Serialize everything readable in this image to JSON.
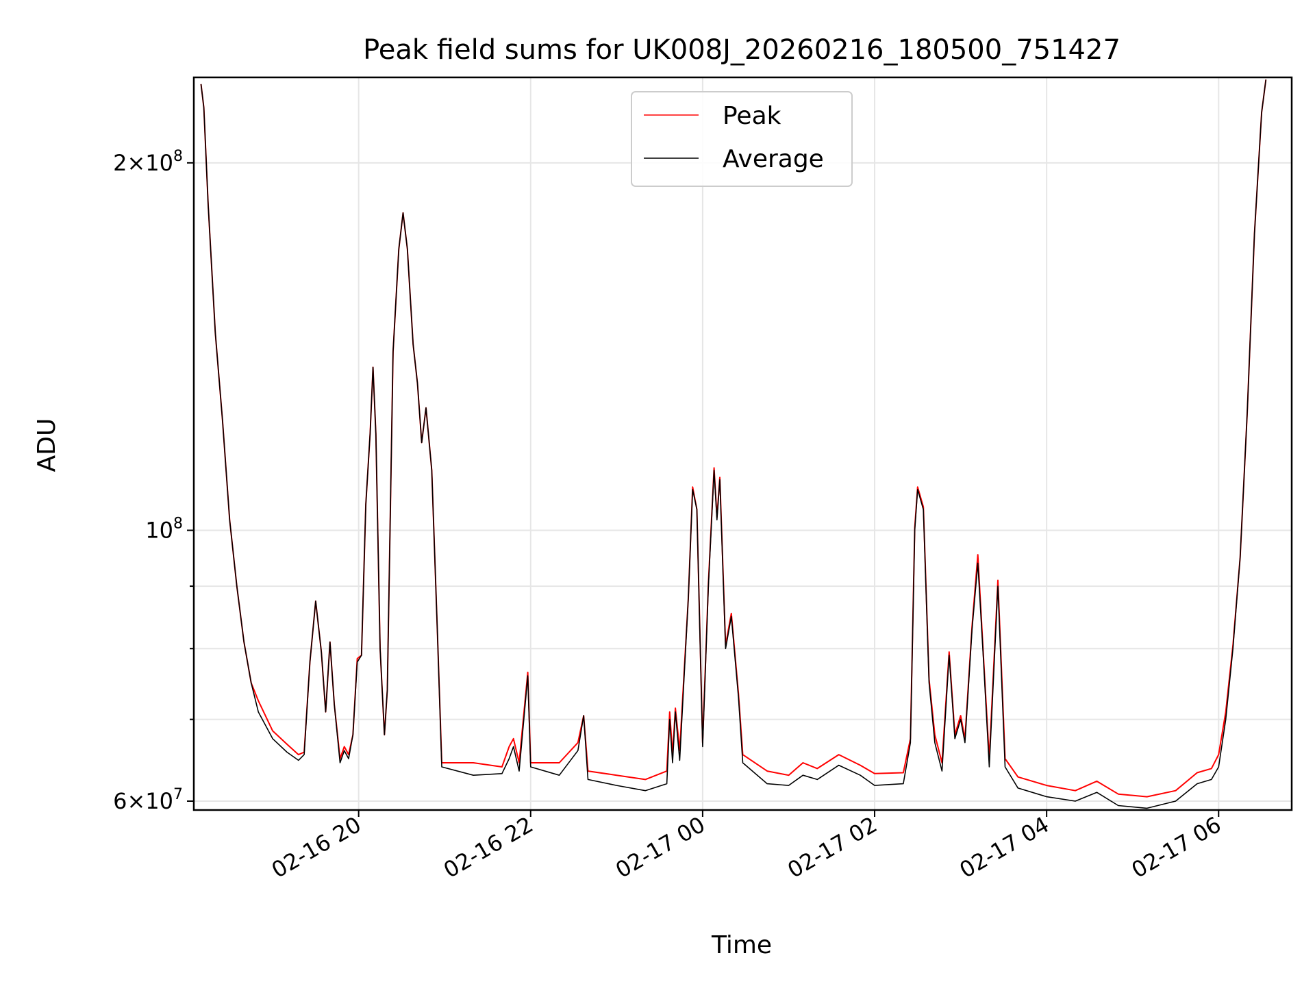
{
  "chart_data": {
    "type": "line",
    "title": "Peak field sums for UK008J_20260216_180500_751427",
    "xlabel": "Time",
    "ylabel": "ADU",
    "y_scale": "log",
    "ylim": [
      59000000,
      235000000
    ],
    "xlim": [
      "2026-02-16 18:05",
      "2026-02-17 06:51"
    ],
    "grid": true,
    "legend": {
      "position": "top-center",
      "entries": [
        "Peak",
        "Average"
      ]
    },
    "x_ticks": [
      {
        "value": "2026-02-16 20:00",
        "label": "02-16 20"
      },
      {
        "value": "2026-02-16 22:00",
        "label": "02-16 22"
      },
      {
        "value": "2026-02-17 00:00",
        "label": "02-17 00"
      },
      {
        "value": "2026-02-17 02:00",
        "label": "02-17 02"
      },
      {
        "value": "2026-02-17 04:00",
        "label": "02-17 04"
      },
      {
        "value": "2026-02-17 06:00",
        "label": "02-17 06"
      }
    ],
    "y_ticks": [
      {
        "value": 60000000,
        "mantissa": "6",
        "exponent": "7"
      },
      {
        "value": 100000000,
        "mantissa": "",
        "exponent": "8"
      },
      {
        "value": 200000000,
        "mantissa": "2",
        "exponent": "8"
      }
    ],
    "y_minor_ticks": [
      70000000,
      80000000,
      90000000
    ],
    "colors": {
      "Peak": "#ff0000",
      "Average": "#000000"
    },
    "series": [
      {
        "name": "Average",
        "points": [
          [
            "2026-02-16 18:10",
            232000000
          ],
          [
            "2026-02-16 18:12",
            222000000
          ],
          [
            "2026-02-16 18:15",
            185000000
          ],
          [
            "2026-02-16 18:20",
            145000000
          ],
          [
            "2026-02-16 18:25",
            123000000
          ],
          [
            "2026-02-16 18:30",
            102000000
          ],
          [
            "2026-02-16 18:35",
            90000000
          ],
          [
            "2026-02-16 18:40",
            81000000
          ],
          [
            "2026-02-16 18:45",
            75000000
          ],
          [
            "2026-02-16 18:50",
            71000000
          ],
          [
            "2026-02-16 19:00",
            67500000
          ],
          [
            "2026-02-16 19:10",
            65800000
          ],
          [
            "2026-02-16 19:18",
            64800000
          ],
          [
            "2026-02-16 19:22",
            65500000
          ],
          [
            "2026-02-16 19:26",
            78000000
          ],
          [
            "2026-02-16 19:30",
            87500000
          ],
          [
            "2026-02-16 19:34",
            79500000
          ],
          [
            "2026-02-16 19:37",
            71000000
          ],
          [
            "2026-02-16 19:40",
            81000000
          ],
          [
            "2026-02-16 19:43",
            72000000
          ],
          [
            "2026-02-16 19:47",
            64500000
          ],
          [
            "2026-02-16 19:50",
            66000000
          ],
          [
            "2026-02-16 19:53",
            65000000
          ],
          [
            "2026-02-16 19:56",
            68000000
          ],
          [
            "2026-02-16 19:59",
            78000000
          ],
          [
            "2026-02-16 20:02",
            79000000
          ],
          [
            "2026-02-16 20:05",
            105000000
          ],
          [
            "2026-02-16 20:08",
            120000000
          ],
          [
            "2026-02-16 20:10",
            136000000
          ],
          [
            "2026-02-16 20:12",
            120000000
          ],
          [
            "2026-02-16 20:15",
            80000000
          ],
          [
            "2026-02-16 20:18",
            68000000
          ],
          [
            "2026-02-16 20:20",
            74000000
          ],
          [
            "2026-02-16 20:24",
            140000000
          ],
          [
            "2026-02-16 20:28",
            170000000
          ],
          [
            "2026-02-16 20:31",
            182000000
          ],
          [
            "2026-02-16 20:34",
            170000000
          ],
          [
            "2026-02-16 20:38",
            142000000
          ],
          [
            "2026-02-16 20:41",
            132000000
          ],
          [
            "2026-02-16 20:44",
            118000000
          ],
          [
            "2026-02-16 20:47",
            126000000
          ],
          [
            "2026-02-16 20:51",
            112000000
          ],
          [
            "2026-02-16 20:55",
            82000000
          ],
          [
            "2026-02-16 20:58",
            64000000
          ],
          [
            "2026-02-16 21:20",
            63000000
          ],
          [
            "2026-02-16 21:40",
            63200000
          ],
          [
            "2026-02-16 21:45",
            65000000
          ],
          [
            "2026-02-16 21:48",
            66500000
          ],
          [
            "2026-02-16 21:52",
            63500000
          ],
          [
            "2026-02-16 21:58",
            76000000
          ],
          [
            "2026-02-16 22:00",
            64000000
          ],
          [
            "2026-02-16 22:20",
            63000000
          ],
          [
            "2026-02-16 22:33",
            66000000
          ],
          [
            "2026-02-16 22:37",
            70500000
          ],
          [
            "2026-02-16 22:40",
            62500000
          ],
          [
            "2026-02-16 23:00",
            61800000
          ],
          [
            "2026-02-16 23:20",
            61200000
          ],
          [
            "2026-02-16 23:35",
            62000000
          ],
          [
            "2026-02-16 23:37",
            70000000
          ],
          [
            "2026-02-16 23:39",
            64500000
          ],
          [
            "2026-02-16 23:41",
            71000000
          ],
          [
            "2026-02-16 23:44",
            64800000
          ],
          [
            "2026-02-16 23:50",
            88000000
          ],
          [
            "2026-02-16 23:53",
            108000000
          ],
          [
            "2026-02-16 23:56",
            104000000
          ],
          [
            "2026-02-17 00:00",
            66500000
          ],
          [
            "2026-02-17 00:04",
            90000000
          ],
          [
            "2026-02-17 00:08",
            112000000
          ],
          [
            "2026-02-17 00:10",
            102000000
          ],
          [
            "2026-02-17 00:12",
            110000000
          ],
          [
            "2026-02-17 00:16",
            80000000
          ],
          [
            "2026-02-17 00:20",
            85000000
          ],
          [
            "2026-02-17 00:25",
            73000000
          ],
          [
            "2026-02-17 00:28",
            64500000
          ],
          [
            "2026-02-17 00:45",
            62000000
          ],
          [
            "2026-02-17 01:00",
            61800000
          ],
          [
            "2026-02-17 01:10",
            63000000
          ],
          [
            "2026-02-17 01:20",
            62500000
          ],
          [
            "2026-02-17 01:35",
            64200000
          ],
          [
            "2026-02-17 01:50",
            63000000
          ],
          [
            "2026-02-17 02:00",
            61800000
          ],
          [
            "2026-02-17 02:20",
            62000000
          ],
          [
            "2026-02-17 02:25",
            67000000
          ],
          [
            "2026-02-17 02:28",
            100000000
          ],
          [
            "2026-02-17 02:30",
            108000000
          ],
          [
            "2026-02-17 02:34",
            104000000
          ],
          [
            "2026-02-17 02:38",
            75000000
          ],
          [
            "2026-02-17 02:42",
            67000000
          ],
          [
            "2026-02-17 02:47",
            63500000
          ],
          [
            "2026-02-17 02:52",
            79000000
          ],
          [
            "2026-02-17 02:56",
            67500000
          ],
          [
            "2026-02-17 03:00",
            70000000
          ],
          [
            "2026-02-17 03:03",
            67000000
          ],
          [
            "2026-02-17 03:08",
            83000000
          ],
          [
            "2026-02-17 03:12",
            94000000
          ],
          [
            "2026-02-17 03:16",
            78000000
          ],
          [
            "2026-02-17 03:20",
            64000000
          ],
          [
            "2026-02-17 03:26",
            90000000
          ],
          [
            "2026-02-17 03:31",
            64000000
          ],
          [
            "2026-02-17 03:40",
            61500000
          ],
          [
            "2026-02-17 04:00",
            60500000
          ],
          [
            "2026-02-17 04:20",
            60000000
          ],
          [
            "2026-02-17 04:35",
            61000000
          ],
          [
            "2026-02-17 04:50",
            59500000
          ],
          [
            "2026-02-17 05:10",
            59200000
          ],
          [
            "2026-02-17 05:30",
            60000000
          ],
          [
            "2026-02-17 05:45",
            62000000
          ],
          [
            "2026-02-17 05:55",
            62500000
          ],
          [
            "2026-02-17 06:00",
            64000000
          ],
          [
            "2026-02-17 06:05",
            70000000
          ],
          [
            "2026-02-17 06:10",
            80000000
          ],
          [
            "2026-02-17 06:15",
            95000000
          ],
          [
            "2026-02-17 06:20",
            125000000
          ],
          [
            "2026-02-17 06:25",
            175000000
          ],
          [
            "2026-02-17 06:30",
            220000000
          ],
          [
            "2026-02-17 06:33",
            234000000
          ]
        ]
      },
      {
        "name": "Peak",
        "points": [
          [
            "2026-02-16 18:10",
            232000000
          ],
          [
            "2026-02-16 18:12",
            222000000
          ],
          [
            "2026-02-16 18:15",
            185000000
          ],
          [
            "2026-02-16 18:20",
            145000000
          ],
          [
            "2026-02-16 18:25",
            123000000
          ],
          [
            "2026-02-16 18:30",
            102000000
          ],
          [
            "2026-02-16 18:35",
            90000000
          ],
          [
            "2026-02-16 18:40",
            81000000
          ],
          [
            "2026-02-16 18:45",
            75000000
          ],
          [
            "2026-02-16 18:50",
            72500000
          ],
          [
            "2026-02-16 19:00",
            68500000
          ],
          [
            "2026-02-16 19:10",
            66800000
          ],
          [
            "2026-02-16 19:18",
            65500000
          ],
          [
            "2026-02-16 19:22",
            65800000
          ],
          [
            "2026-02-16 19:26",
            78000000
          ],
          [
            "2026-02-16 19:30",
            87500000
          ],
          [
            "2026-02-16 19:34",
            79500000
          ],
          [
            "2026-02-16 19:37",
            71000000
          ],
          [
            "2026-02-16 19:40",
            81000000
          ],
          [
            "2026-02-16 19:43",
            72000000
          ],
          [
            "2026-02-16 19:47",
            65000000
          ],
          [
            "2026-02-16 19:50",
            66500000
          ],
          [
            "2026-02-16 19:53",
            65500000
          ],
          [
            "2026-02-16 19:56",
            68000000
          ],
          [
            "2026-02-16 19:59",
            78500000
          ],
          [
            "2026-02-16 20:02",
            79000000
          ],
          [
            "2026-02-16 20:05",
            105000000
          ],
          [
            "2026-02-16 20:08",
            120000000
          ],
          [
            "2026-02-16 20:10",
            136000000
          ],
          [
            "2026-02-16 20:12",
            120000000
          ],
          [
            "2026-02-16 20:15",
            80000000
          ],
          [
            "2026-02-16 20:18",
            68000000
          ],
          [
            "2026-02-16 20:20",
            74000000
          ],
          [
            "2026-02-16 20:24",
            140000000
          ],
          [
            "2026-02-16 20:28",
            170000000
          ],
          [
            "2026-02-16 20:31",
            182000000
          ],
          [
            "2026-02-16 20:34",
            170000000
          ],
          [
            "2026-02-16 20:38",
            142000000
          ],
          [
            "2026-02-16 20:41",
            132000000
          ],
          [
            "2026-02-16 20:44",
            118000000
          ],
          [
            "2026-02-16 20:47",
            126000000
          ],
          [
            "2026-02-16 20:51",
            112000000
          ],
          [
            "2026-02-16 20:55",
            82000000
          ],
          [
            "2026-02-16 20:58",
            64500000
          ],
          [
            "2026-02-16 21:05",
            64500000
          ],
          [
            "2026-02-16 21:20",
            64500000
          ],
          [
            "2026-02-16 21:40",
            64000000
          ],
          [
            "2026-02-16 21:45",
            66500000
          ],
          [
            "2026-02-16 21:48",
            67500000
          ],
          [
            "2026-02-16 21:52",
            64500000
          ],
          [
            "2026-02-16 21:58",
            76500000
          ],
          [
            "2026-02-16 22:00",
            64500000
          ],
          [
            "2026-02-16 22:20",
            64500000
          ],
          [
            "2026-02-16 22:33",
            67000000
          ],
          [
            "2026-02-16 22:37",
            70500000
          ],
          [
            "2026-02-16 22:40",
            63500000
          ],
          [
            "2026-02-16 23:00",
            63000000
          ],
          [
            "2026-02-16 23:20",
            62500000
          ],
          [
            "2026-02-16 23:35",
            63500000
          ],
          [
            "2026-02-16 23:37",
            71000000
          ],
          [
            "2026-02-16 23:39",
            65500000
          ],
          [
            "2026-02-16 23:41",
            71500000
          ],
          [
            "2026-02-16 23:44",
            66000000
          ],
          [
            "2026-02-16 23:50",
            88000000
          ],
          [
            "2026-02-16 23:53",
            108500000
          ],
          [
            "2026-02-16 23:56",
            104000000
          ],
          [
            "2026-02-17 00:00",
            67000000
          ],
          [
            "2026-02-17 00:04",
            90500000
          ],
          [
            "2026-02-17 00:08",
            112500000
          ],
          [
            "2026-02-17 00:10",
            102500000
          ],
          [
            "2026-02-17 00:12",
            110500000
          ],
          [
            "2026-02-17 00:16",
            80500000
          ],
          [
            "2026-02-17 00:20",
            85500000
          ],
          [
            "2026-02-17 00:25",
            73500000
          ],
          [
            "2026-02-17 00:28",
            65500000
          ],
          [
            "2026-02-17 00:45",
            63500000
          ],
          [
            "2026-02-17 01:00",
            63000000
          ],
          [
            "2026-02-17 01:10",
            64500000
          ],
          [
            "2026-02-17 01:20",
            63800000
          ],
          [
            "2026-02-17 01:35",
            65500000
          ],
          [
            "2026-02-17 01:50",
            64200000
          ],
          [
            "2026-02-17 02:00",
            63200000
          ],
          [
            "2026-02-17 02:20",
            63300000
          ],
          [
            "2026-02-17 02:25",
            67500000
          ],
          [
            "2026-02-17 02:28",
            100500000
          ],
          [
            "2026-02-17 02:30",
            108500000
          ],
          [
            "2026-02-17 02:34",
            104500000
          ],
          [
            "2026-02-17 02:38",
            75500000
          ],
          [
            "2026-02-17 02:42",
            68000000
          ],
          [
            "2026-02-17 02:47",
            64500000
          ],
          [
            "2026-02-17 02:52",
            79500000
          ],
          [
            "2026-02-17 02:56",
            68000000
          ],
          [
            "2026-02-17 03:00",
            70500000
          ],
          [
            "2026-02-17 03:03",
            67500000
          ],
          [
            "2026-02-17 03:08",
            83500000
          ],
          [
            "2026-02-17 03:12",
            95500000
          ],
          [
            "2026-02-17 03:16",
            78500000
          ],
          [
            "2026-02-17 03:20",
            65000000
          ],
          [
            "2026-02-17 03:26",
            91000000
          ],
          [
            "2026-02-17 03:31",
            65000000
          ],
          [
            "2026-02-17 03:40",
            62800000
          ],
          [
            "2026-02-17 04:00",
            61800000
          ],
          [
            "2026-02-17 04:20",
            61200000
          ],
          [
            "2026-02-17 04:35",
            62300000
          ],
          [
            "2026-02-17 04:50",
            60800000
          ],
          [
            "2026-02-17 05:10",
            60500000
          ],
          [
            "2026-02-17 05:30",
            61200000
          ],
          [
            "2026-02-17 05:45",
            63300000
          ],
          [
            "2026-02-17 05:55",
            63800000
          ],
          [
            "2026-02-17 06:00",
            65500000
          ],
          [
            "2026-02-17 06:05",
            71000000
          ],
          [
            "2026-02-17 06:10",
            80500000
          ],
          [
            "2026-02-17 06:15",
            95000000
          ],
          [
            "2026-02-17 06:20",
            125000000
          ],
          [
            "2026-02-17 06:25",
            175000000
          ],
          [
            "2026-02-17 06:30",
            220000000
          ],
          [
            "2026-02-17 06:33",
            234000000
          ]
        ]
      }
    ]
  }
}
